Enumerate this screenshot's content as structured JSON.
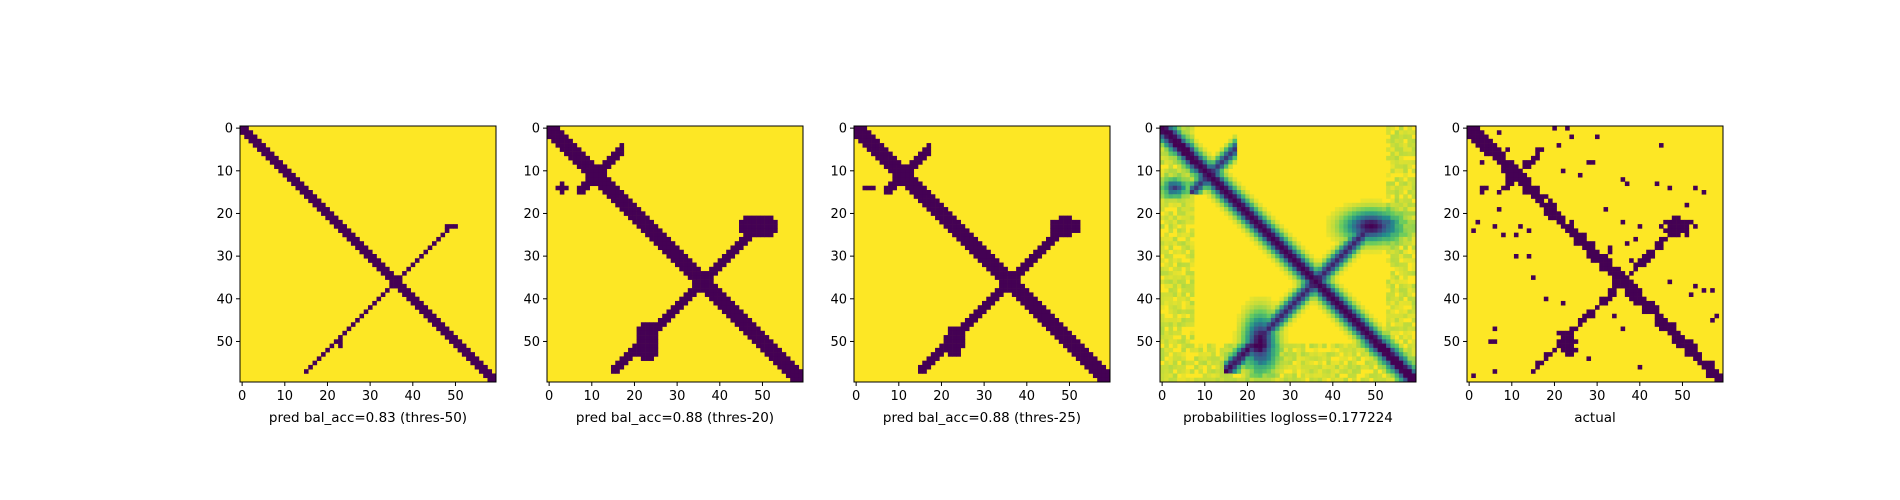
{
  "chart_data": {
    "type": "heatmap",
    "grid_size": 60,
    "colormap": "viridis",
    "colors": {
      "low": "#440154",
      "high": "#fde725",
      "mid": "#21918c"
    },
    "panels": [
      {
        "id": "pred-50",
        "mode": "binary",
        "xlabel": "pred bal_acc=0.83 (thres-50)",
        "xticks": [
          "0",
          "10",
          "20",
          "30",
          "40",
          "50"
        ],
        "yticks": [
          "0",
          "10",
          "20",
          "30",
          "40",
          "50"
        ],
        "width_scale": 0.55,
        "offdiag_strength": 0.6
      },
      {
        "id": "pred-20",
        "mode": "binary",
        "xlabel": "pred bal_acc=0.88 (thres-20)",
        "xticks": [
          "0",
          "10",
          "20",
          "30",
          "40",
          "50"
        ],
        "yticks": [
          "0",
          "10",
          "20",
          "30",
          "40",
          "50"
        ],
        "width_scale": 1.0,
        "offdiag_strength": 1.0
      },
      {
        "id": "pred-25",
        "mode": "binary",
        "xlabel": "pred bal_acc=0.88 (thres-25)",
        "xticks": [
          "0",
          "10",
          "20",
          "30",
          "40",
          "50"
        ],
        "yticks": [
          "0",
          "10",
          "20",
          "30",
          "40",
          "50"
        ],
        "width_scale": 0.85,
        "offdiag_strength": 0.9
      },
      {
        "id": "probabilities",
        "mode": "continuous",
        "xlabel": "probabilities logloss=0.177224",
        "xticks": [
          "0",
          "10",
          "20",
          "30",
          "40",
          "50"
        ],
        "yticks": [
          "0",
          "10",
          "20",
          "30",
          "40",
          "50"
        ],
        "width_scale": 1.0,
        "offdiag_strength": 1.0
      },
      {
        "id": "actual",
        "mode": "binary",
        "xlabel": "actual",
        "xticks": [
          "0",
          "10",
          "20",
          "30",
          "40",
          "50"
        ],
        "yticks": [
          "0",
          "10",
          "20",
          "30",
          "40",
          "50"
        ],
        "width_scale": 0.8,
        "offdiag_strength": 0.7,
        "noise": true
      }
    ]
  }
}
